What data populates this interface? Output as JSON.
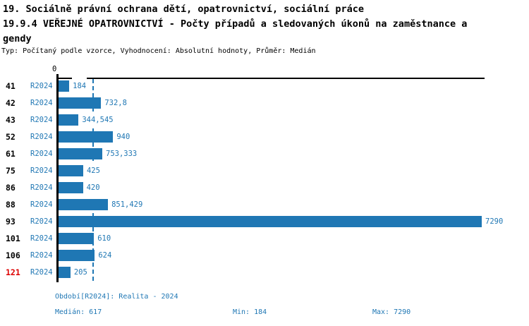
{
  "header": {
    "title_lines": [
      "19. Sociálně právní ochrana dětí, opatrovnictví, sociální práce",
      "19.9.4 VEŘEJNÉ OPATROVNICTVÍ - Počty případů a sledovaných úkonů na zaměstnance a",
      "gendy"
    ],
    "subtitle": "Typ: Počítaný podle vzorce, Vyhodnocení: Absolutní hodnoty, Průměr: Medián"
  },
  "colors": {
    "bar": "#1f77b4",
    "label_blue": "#1f77b4",
    "highlight_red": "#dd0000",
    "axis": "#000000"
  },
  "chart_data": {
    "type": "bar",
    "orientation": "horizontal",
    "series_label": "R2024",
    "categories": [
      "41",
      "42",
      "43",
      "52",
      "61",
      "75",
      "86",
      "88",
      "93",
      "101",
      "106",
      "121"
    ],
    "values": [
      184,
      732.8,
      344.545,
      940,
      753.333,
      425,
      420,
      851.429,
      7290,
      610,
      624,
      205
    ],
    "value_labels": [
      "184",
      "732,8",
      "344,545",
      "940",
      "753,333",
      "425",
      "420",
      "851,429",
      "7290",
      "610",
      "624",
      "205"
    ],
    "highlighted_categories": [
      "121"
    ],
    "origin_label": "0",
    "xlim": [
      0,
      7290
    ],
    "median": 617,
    "min": 184,
    "max": 7290,
    "grid": false,
    "legend": "none"
  },
  "footer": {
    "period": "Období[R2024]: Realita - 2024",
    "median": "Medián: 617",
    "min": "Min: 184",
    "max": "Max: 7290"
  }
}
